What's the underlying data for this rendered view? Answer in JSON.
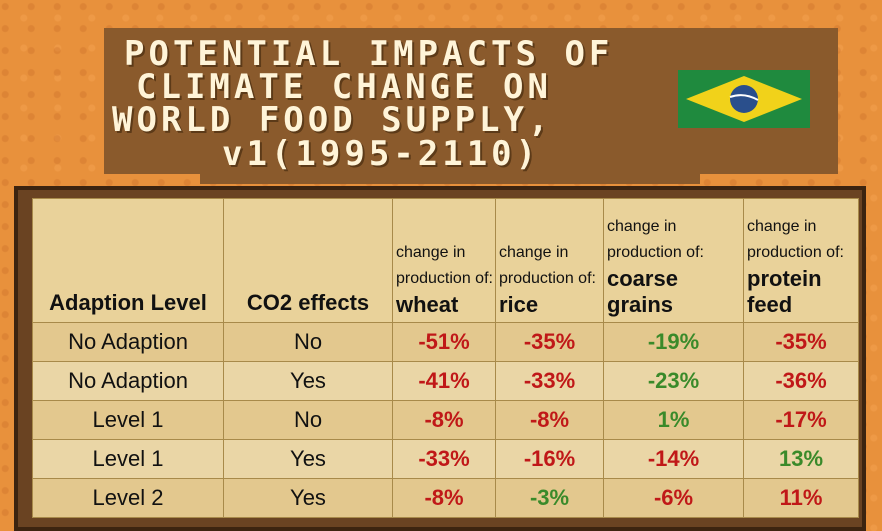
{
  "title": {
    "line1": "POTENTIAL IMPACTS OF",
    "line2": "CLIMATE CHANGE ON",
    "line3": "WORLD FOOD SUPPLY,",
    "line4": "v1(1995-2110)"
  },
  "flag": {
    "icon": "brazil-flag-icon",
    "green": "#1f8a3e",
    "yellow": "#f1d21a",
    "blue": "#2a4f8c"
  },
  "colors": {
    "negative": "#c01818",
    "positive": "#3a8a2a"
  },
  "chart_data": {
    "type": "table",
    "columns": [
      {
        "label": "Adaption Level"
      },
      {
        "label": "CO2 effects"
      },
      {
        "prefix": "change in production of:",
        "label": "wheat"
      },
      {
        "prefix": "change in production of:",
        "label": "rice"
      },
      {
        "prefix": "change in production of:",
        "label": "coarse grains"
      },
      {
        "prefix": "change in production of:",
        "label": "protein feed"
      }
    ],
    "rows": [
      {
        "level": "No Adaption",
        "co2": "No",
        "wheat": "-51%",
        "rice": "-35%",
        "coarse": "-19%",
        "protein": "-35%",
        "colors": [
          "red",
          "red",
          "green",
          "red"
        ]
      },
      {
        "level": "No Adaption",
        "co2": "Yes",
        "wheat": "-41%",
        "rice": "-33%",
        "coarse": "-23%",
        "protein": "-36%",
        "colors": [
          "red",
          "red",
          "green",
          "red"
        ]
      },
      {
        "level": "Level 1",
        "co2": "No",
        "wheat": "-8%",
        "rice": "-8%",
        "coarse": "1%",
        "protein": "-17%",
        "colors": [
          "red",
          "red",
          "green",
          "red"
        ]
      },
      {
        "level": "Level 1",
        "co2": "Yes",
        "wheat": "-33%",
        "rice": "-16%",
        "coarse": "-14%",
        "protein": "13%",
        "colors": [
          "red",
          "red",
          "red",
          "green"
        ]
      },
      {
        "level": "Level 2",
        "co2": "Yes",
        "wheat": "-8%",
        "rice": "-3%",
        "coarse": "-6%",
        "protein": "11%",
        "colors": [
          "red",
          "green",
          "red",
          "red"
        ]
      }
    ]
  }
}
